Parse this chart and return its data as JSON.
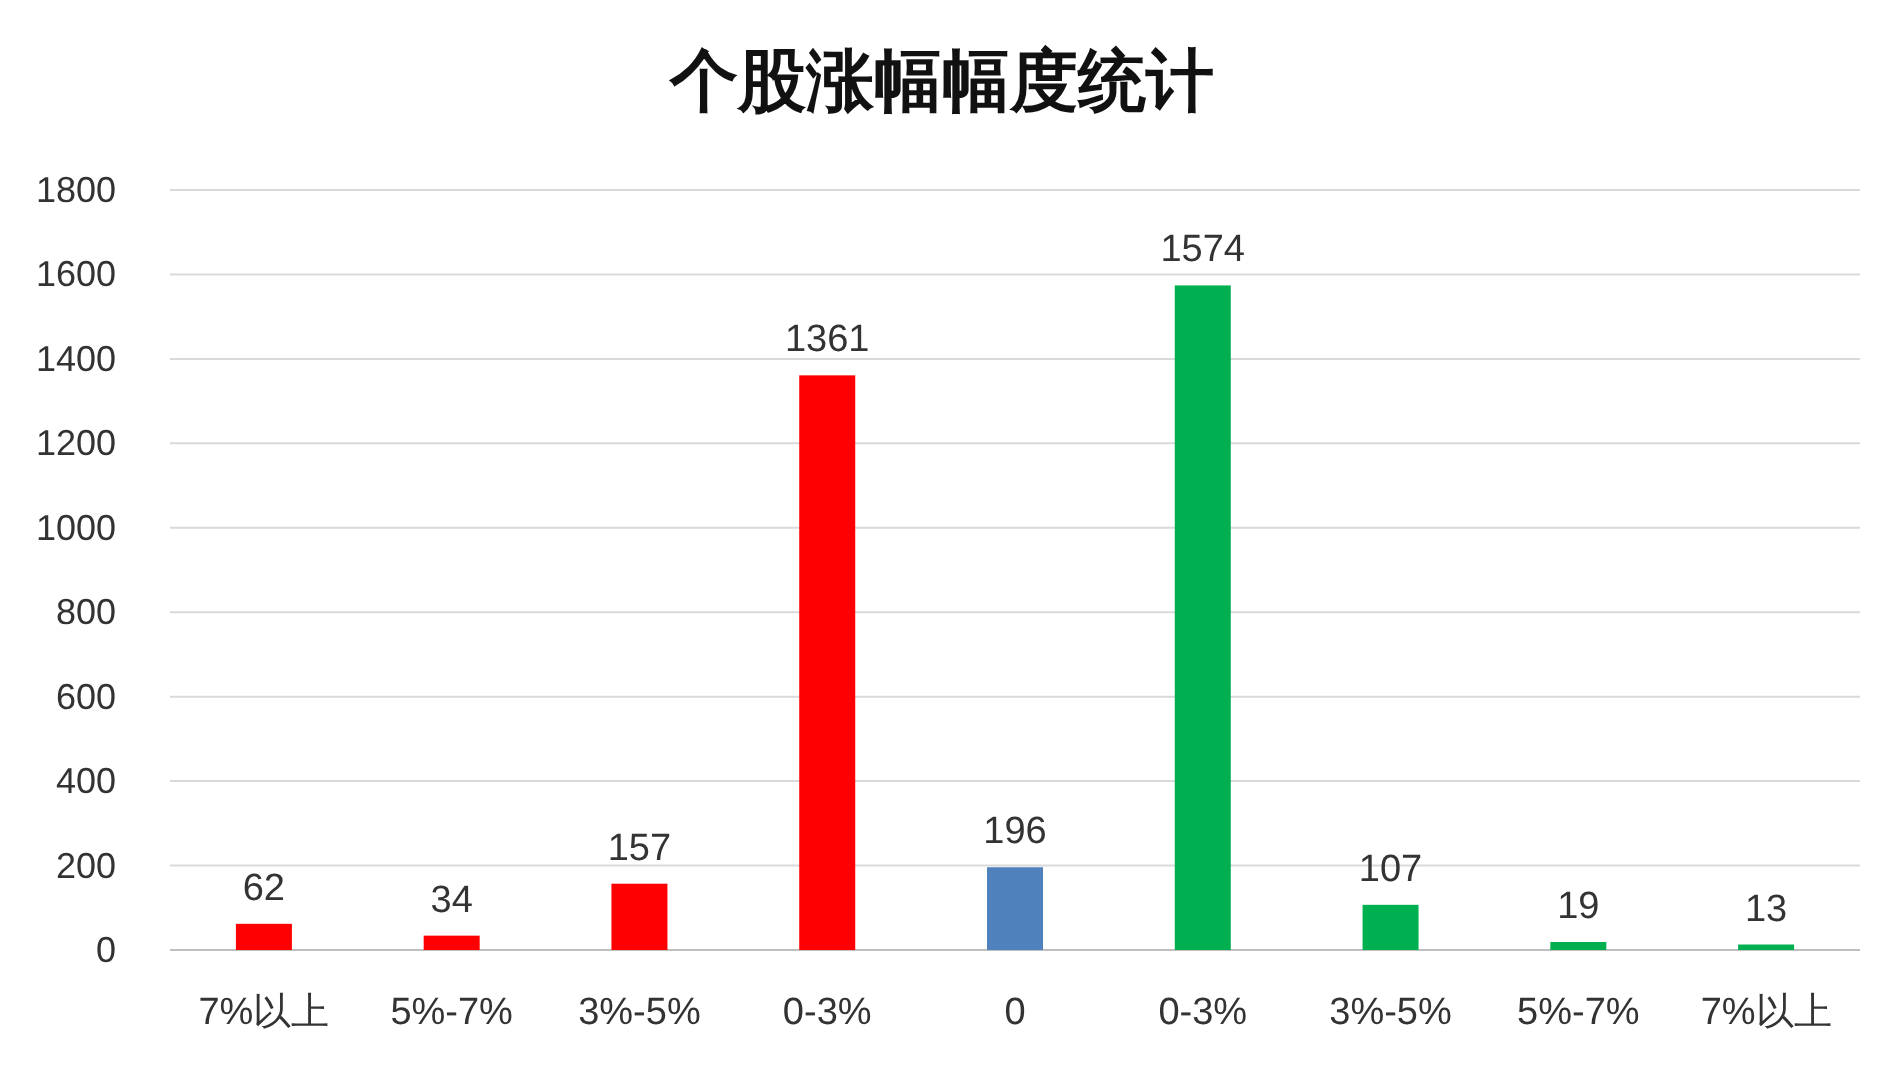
{
  "chart_data": {
    "type": "bar",
    "title": "个股涨幅幅度统计",
    "categories": [
      "7%以上",
      "5%-7%",
      "3%-5%",
      "0-3%",
      "0",
      "0-3%",
      "3%-5%",
      "5%-7%",
      "7%以上"
    ],
    "values": [
      62,
      34,
      157,
      1361,
      196,
      1574,
      107,
      19,
      13
    ],
    "colors": [
      "#ff0000",
      "#ff0000",
      "#ff0000",
      "#ff0000",
      "#4f81bd",
      "#00b050",
      "#00b050",
      "#00b050",
      "#00b050"
    ],
    "ylim": [
      0,
      1800
    ],
    "yticks": [
      0,
      200,
      400,
      600,
      800,
      1000,
      1200,
      1400,
      1600,
      1800
    ],
    "grid": "y",
    "data_labels": true
  }
}
